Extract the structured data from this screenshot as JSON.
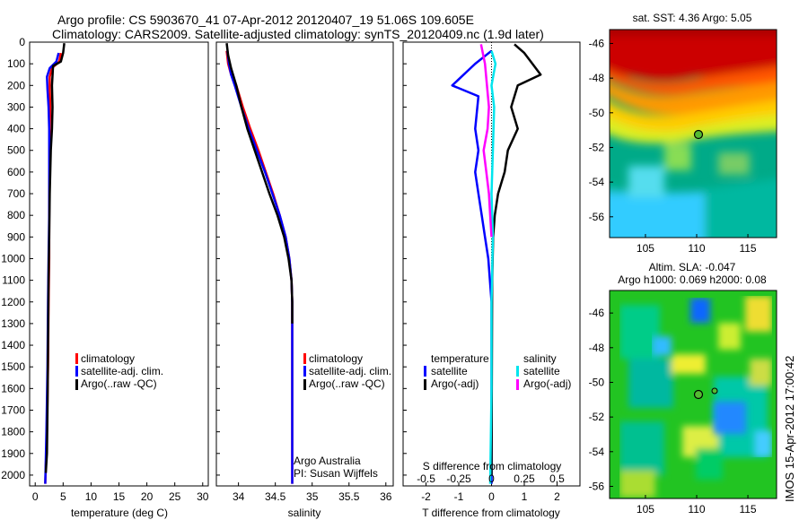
{
  "header": {
    "line1": "Argo profile: CS 5903670_41 07-Apr-2012 20120407_19 51.06S 109.605E",
    "line2": "Climatology: CARS2009. Satellite-adjusted climatology: synTS_20120409.nc (1.9d later)"
  },
  "colors": {
    "climatology": "#ff0000",
    "satellite": "#0000ff",
    "argo": "#000000",
    "s_satellite": "#00e5ee",
    "s_argo": "#ff00ff"
  },
  "labels": {
    "legend_clim": "climatology",
    "legend_sat": "satellite-adj. clim.",
    "legend_argo": "Argo(..raw -QC)",
    "diff_temperature": "temperature",
    "diff_salinity": "salinity",
    "diff_satellite": "satellite",
    "diff_argo_adj": "Argo(-adj)",
    "s_diff_title": "S difference from climatology",
    "argo_australia": "Argo Australia",
    "pi": "PI: Susan Wijffels",
    "sst_title": "sat. SST: 4.36 Argo: 5.05",
    "sla_title1": "Altim. SLA: -0.047",
    "sla_title2": "Argo h1000: 0.069 h2000: 0.08",
    "imos_stamp": "IMOS 15-Apr-2012 17:00:42"
  },
  "chart_data": [
    {
      "type": "line",
      "panel": "temperature",
      "xlabel": "temperature (deg C)",
      "xlim": [
        -1,
        31
      ],
      "xticks": [
        0,
        5,
        10,
        15,
        20,
        25,
        30
      ],
      "ylim": [
        0,
        2050
      ],
      "yticks": [
        0,
        100,
        200,
        300,
        400,
        500,
        600,
        700,
        800,
        900,
        1000,
        1100,
        1200,
        1300,
        1400,
        1500,
        1600,
        1700,
        1800,
        1900,
        2000
      ],
      "series": [
        {
          "name": "climatology",
          "color": "#ff0000",
          "x": [
            4.6,
            4.3,
            3.0,
            2.6,
            2.6,
            2.7,
            2.6,
            2.6,
            2.5,
            2.5,
            2.4,
            2.3,
            2.1,
            1.8
          ],
          "y": [
            50,
            90,
            120,
            160,
            220,
            300,
            400,
            600,
            800,
            1000,
            1200,
            1500,
            1800,
            2040
          ]
        },
        {
          "name": "satellite-adj. clim.",
          "color": "#0000ff",
          "x": [
            4.2,
            3.8,
            2.6,
            2.1,
            2.2,
            2.4,
            2.5,
            2.5,
            2.5,
            2.4,
            2.3,
            2.2,
            2.0,
            1.8
          ],
          "y": [
            50,
            90,
            120,
            160,
            220,
            300,
            400,
            600,
            800,
            1000,
            1200,
            1500,
            1800,
            2040
          ]
        },
        {
          "name": "Argo(..raw -QC)",
          "color": "#000000",
          "x": [
            5.2,
            5.0,
            4.6,
            3.2,
            3.0,
            3.1,
            3.0,
            2.8,
            2.6,
            2.5,
            2.4,
            2.3,
            2.2,
            2.1,
            1.9
          ],
          "y": [
            5,
            50,
            90,
            110,
            200,
            300,
            400,
            500,
            700,
            900,
            1100,
            1400,
            1700,
            1900,
            1990
          ]
        }
      ]
    },
    {
      "type": "line",
      "panel": "salinity",
      "xlabel": "salinity",
      "xlim": [
        33.7,
        36.1
      ],
      "xticks": [
        34,
        34.5,
        35,
        35.5,
        36
      ],
      "ylim": [
        0,
        2050
      ],
      "series": [
        {
          "name": "climatology",
          "color": "#ff0000",
          "x": [
            33.84,
            33.86,
            33.9,
            33.97,
            34.06,
            34.16,
            34.27,
            34.37,
            34.47,
            34.56,
            34.64,
            34.69,
            34.72,
            34.73,
            34.73,
            34.73
          ],
          "y": [
            40,
            100,
            150,
            200,
            300,
            400,
            500,
            600,
            700,
            800,
            900,
            1000,
            1100,
            1200,
            1500,
            2040
          ]
        },
        {
          "name": "satellite-adj. clim.",
          "color": "#0000ff",
          "x": [
            33.85,
            33.87,
            33.9,
            33.95,
            34.04,
            34.14,
            34.25,
            34.36,
            34.46,
            34.56,
            34.64,
            34.69,
            34.72,
            34.73,
            34.73,
            34.73
          ],
          "y": [
            40,
            100,
            150,
            200,
            300,
            400,
            500,
            600,
            700,
            800,
            900,
            1000,
            1100,
            1200,
            1500,
            2040
          ]
        },
        {
          "name": "Argo(..raw -QC)",
          "color": "#000000",
          "x": [
            33.84,
            33.86,
            33.9,
            33.97,
            34.04,
            34.12,
            34.22,
            34.32,
            34.42,
            34.53,
            34.62,
            34.68,
            34.72,
            34.73,
            34.73
          ],
          "y": [
            5,
            60,
            120,
            200,
            300,
            400,
            500,
            600,
            700,
            800,
            900,
            1000,
            1100,
            1200,
            1300
          ]
        }
      ]
    },
    {
      "type": "line",
      "panel": "difference",
      "xlabel": "T difference from climatology",
      "xlim": [
        -2.7,
        2.7
      ],
      "xticks": [
        -2,
        -1,
        0,
        1,
        2
      ],
      "s_xticks": [
        -0.5,
        -0.25,
        0,
        0.25,
        0.5
      ],
      "s_xtick_labels": [
        "-0.5",
        "-0.25",
        "0",
        "0.25",
        "0.5"
      ],
      "ylim": [
        0,
        2050
      ],
      "series": [
        {
          "name": "satellite",
          "quantity": "temperature",
          "color": "#0000ff",
          "x": [
            0.0,
            -0.5,
            -1.2,
            -0.4,
            -0.5,
            -0.4,
            -0.5,
            -0.4,
            -0.3,
            -0.2,
            -0.1,
            0.0,
            0.0,
            0.0
          ],
          "y": [
            40,
            100,
            200,
            250,
            400,
            500,
            600,
            700,
            800,
            900,
            1000,
            1200,
            1600,
            2040
          ]
        },
        {
          "name": "Argo(-adj)",
          "quantity": "temperature",
          "color": "#000000",
          "x": [
            0.7,
            1.0,
            1.5,
            0.8,
            0.6,
            0.8,
            0.5,
            0.4,
            0.2,
            0.1,
            0.05,
            0.02,
            0.0
          ],
          "y": [
            10,
            50,
            150,
            200,
            300,
            400,
            500,
            600,
            700,
            800,
            900,
            1100,
            2000
          ]
        },
        {
          "name": "satellite",
          "quantity": "salinity",
          "color": "#00e5ee",
          "x": [
            0.0,
            0.03,
            0.0,
            0.02,
            0.01,
            0.0,
            0.01,
            0.0,
            0.0,
            -0.01
          ],
          "y": [
            40,
            100,
            200,
            300,
            500,
            700,
            900,
            1200,
            1600,
            2040
          ]
        },
        {
          "name": "Argo(-adj)",
          "quantity": "salinity",
          "color": "#ff00ff",
          "x": [
            -0.08,
            -0.05,
            -0.02,
            -0.03,
            -0.06,
            -0.04,
            -0.02,
            -0.01,
            0.0
          ],
          "y": [
            10,
            100,
            300,
            400,
            500,
            600,
            700,
            800,
            900
          ]
        }
      ]
    },
    {
      "type": "heatmap",
      "panel": "sst_map",
      "title": "sat. SST: 4.36 Argo: 5.05",
      "xlim": [
        101.5,
        117.8
      ],
      "ylim": [
        -57.2,
        -45.2
      ],
      "xticks": [
        105,
        110,
        115
      ],
      "yticks": [
        -46,
        -48,
        -50,
        -52,
        -54,
        -56
      ],
      "marker": {
        "lon": 109.6,
        "lat": -51.06
      }
    },
    {
      "type": "heatmap",
      "panel": "sla_map",
      "title": "Altim. SLA: -0.047",
      "xlim": [
        101.5,
        117.8
      ],
      "ylim": [
        -56.7,
        -44.7
      ],
      "xticks": [
        105,
        110,
        115
      ],
      "yticks": [
        -46,
        -48,
        -50,
        -52,
        -54,
        -56
      ],
      "marker": {
        "lon": 109.6,
        "lat": -51.06
      }
    }
  ]
}
